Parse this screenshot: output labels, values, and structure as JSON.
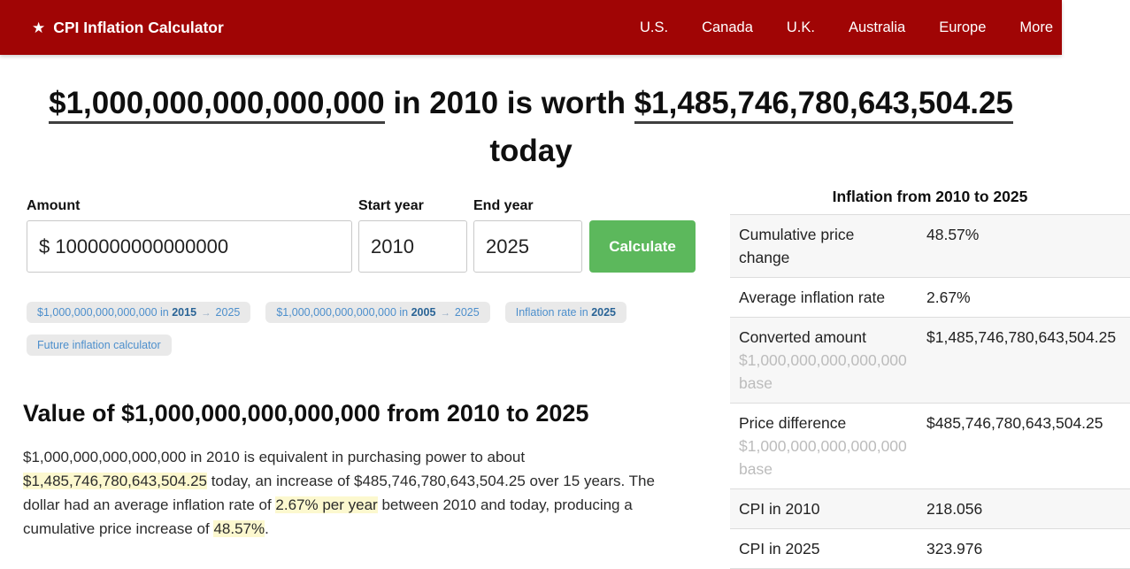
{
  "nav": {
    "brand_icon": "★",
    "brand_label": "CPI Inflation Calculator",
    "items": [
      "U.S.",
      "Canada",
      "U.K.",
      "Australia",
      "Europe",
      "More"
    ]
  },
  "headline": {
    "amount_from": "$1,000,000,000,000,000",
    "mid": " in 2010 is worth ",
    "amount_to": "$1,485,746,780,643,504.25",
    "tail": " today"
  },
  "form": {
    "amount_label": "Amount",
    "amount_value": "$ 1000000000000000",
    "start_year_label": "Start year",
    "start_year_value": "2010",
    "end_year_label": "End year",
    "end_year_value": "2025",
    "calculate_label": "Calculate"
  },
  "chips": [
    {
      "prefix": "$1,000,000,000,000,000 in ",
      "bold": "2015",
      "arrow": "→",
      "suffix": "2025"
    },
    {
      "prefix": "$1,000,000,000,000,000 in ",
      "bold": "2005",
      "arrow": "→",
      "suffix": "2025"
    },
    {
      "prefix": "Inflation rate in ",
      "bold": "2025"
    },
    {
      "label": "Future inflation calculator"
    }
  ],
  "section": {
    "title": "Value of $1,000,000,000,000,000 from 2010 to 2025"
  },
  "paragraph": {
    "p1": "$1,000,000,000,000,000 in 2010 is equivalent in purchasing power to about ",
    "h1": "$1,485,746,780,643,504.25",
    "p2": " today, an increase of $485,746,780,643,504.25 over 15 years. The dollar had an average inflation rate of ",
    "h2": "2.67% per year",
    "p3": " between 2010 and today, producing a cumulative price increase of ",
    "h3": "48.57%",
    "p4": "."
  },
  "table": {
    "title": "Inflation from 2010 to 2025",
    "rows": [
      {
        "label": "Cumulative price change",
        "sub": "",
        "value": "48.57%"
      },
      {
        "label": "Average inflation rate",
        "sub": "",
        "value": "2.67%"
      },
      {
        "label": "Converted amount",
        "sub": "$1,000,000,000,000,000 base",
        "value": "$1,485,746,780,643,504.25"
      },
      {
        "label": "Price difference",
        "sub": "$1,000,000,000,000,000 base",
        "value": "$485,746,780,643,504.25"
      },
      {
        "label": "CPI in 2010",
        "sub": "",
        "value": "218.056"
      },
      {
        "label": "CPI in 2025",
        "sub": "",
        "value": "323.976"
      }
    ]
  },
  "theme": {
    "navbar_red": "#a00505",
    "button_green": "#5cb85c",
    "highlight_yellow": "#fcf8cf",
    "chip_blue": "#4d8fcc",
    "stripe_grey": "#f7f7f7"
  }
}
